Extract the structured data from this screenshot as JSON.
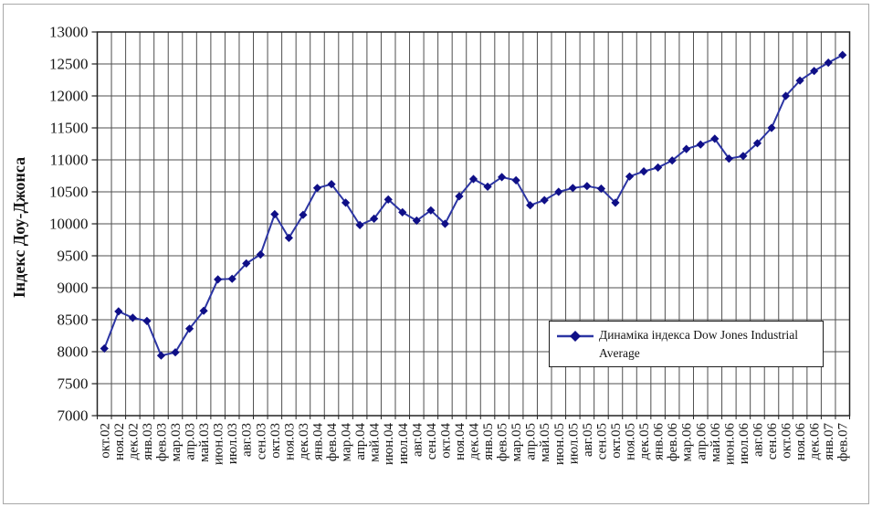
{
  "window": {
    "background": "#ffffff",
    "outer_border_color": "#a8a8a8"
  },
  "chart_data": {
    "type": "line",
    "title": "",
    "xlabel": "",
    "ylabel": "Індекс Доу-Джонса",
    "ylim": [
      7000,
      13000
    ],
    "ytick_step": 500,
    "yticks": [
      13000,
      12500,
      12000,
      11500,
      11000,
      10500,
      10000,
      9500,
      9000,
      8500,
      8000,
      7500,
      7000
    ],
    "grid": "both",
    "legend_position": "inside-bottom-right",
    "axis_color": "#222222",
    "grid_color": "#4f4f4f",
    "text_color": "#141414",
    "categories": [
      "окт.02",
      "ноя.02",
      "дек.02",
      "янв.03",
      "фев.03",
      "мар.03",
      "апр.03",
      "май.03",
      "июн.03",
      "июл.03",
      "авг.03",
      "сен.03",
      "окт.03",
      "ноя.03",
      "дек.03",
      "янв.04",
      "фев.04",
      "мар.04",
      "апр.04",
      "май.04",
      "июн.04",
      "июл.04",
      "авг.04",
      "сен.04",
      "окт.04",
      "ноя.04",
      "дек.04",
      "янв.05",
      "фев.05",
      "мар.05",
      "апр.05",
      "май.05",
      "июн.05",
      "июл.05",
      "авг.05",
      "сен.05",
      "окт.05",
      "ноя.05",
      "дек.05",
      "янв.06",
      "фев.06",
      "мар.06",
      "апр.06",
      "май.06",
      "июн.06",
      "июл.06",
      "авг.06",
      "сен.06",
      "окт.06",
      "ноя.06",
      "дек.06",
      "янв.07",
      "фев.07"
    ],
    "series": [
      {
        "name": "Динаміка індекса Dow Jones Industrial Average",
        "marker": "diamond",
        "line_color": "#2c35a3",
        "marker_color": "#0f0f87",
        "values": [
          8050,
          8630,
          8530,
          8480,
          7940,
          7990,
          8360,
          8640,
          9130,
          9140,
          9380,
          9520,
          10150,
          9780,
          10140,
          10560,
          10620,
          10330,
          9980,
          10080,
          10380,
          10180,
          10050,
          10210,
          10000,
          10430,
          10700,
          10580,
          10730,
          10680,
          10290,
          10370,
          10500,
          10560,
          10590,
          10550,
          10330,
          10740,
          10820,
          10880,
          10990,
          11170,
          11240,
          11330,
          11020,
          11060,
          11260,
          11500,
          12000,
          12240,
          12390,
          12520,
          12640
        ]
      }
    ]
  }
}
